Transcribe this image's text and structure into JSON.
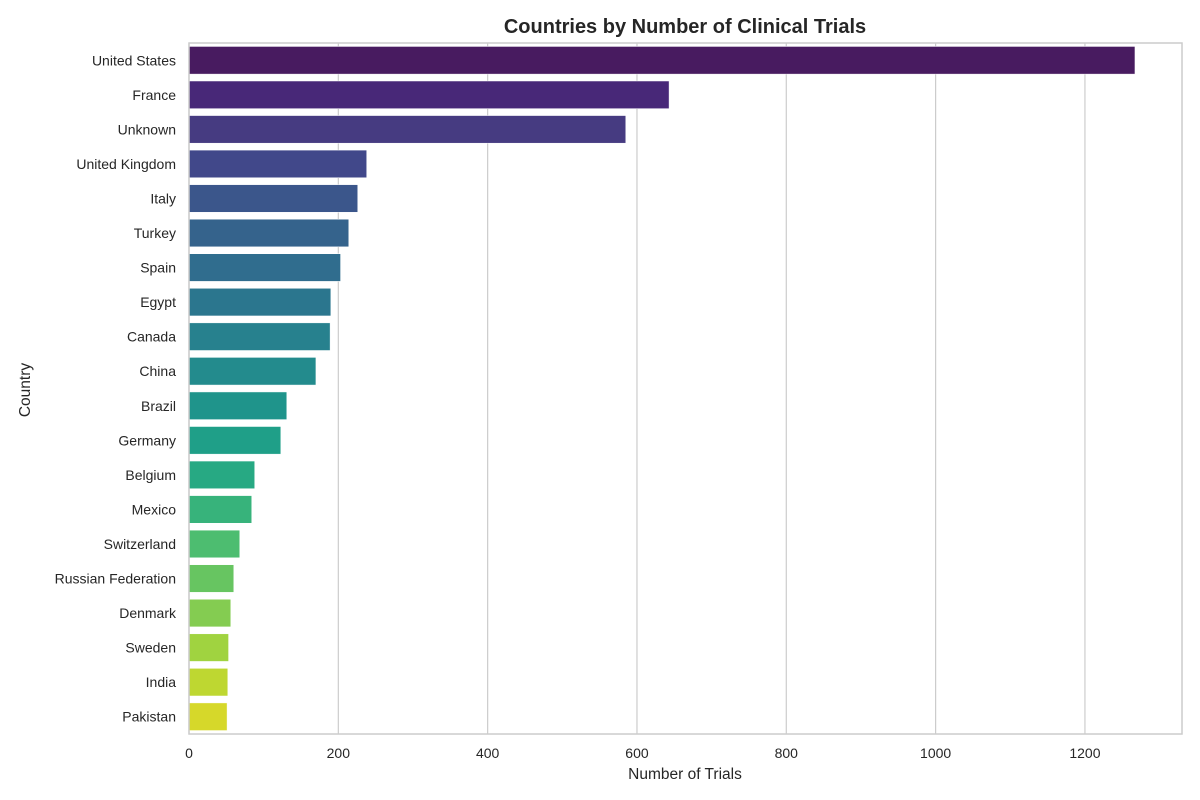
{
  "chart_data": {
    "type": "bar",
    "orientation": "horizontal",
    "title": "Countries by Number of Clinical Trials",
    "xlabel": "Number of Trials",
    "ylabel": "Country",
    "xlim": [
      0,
      1330
    ],
    "xticks": [
      0,
      200,
      400,
      600,
      800,
      1000,
      1200
    ],
    "grid": "vertical",
    "palette": "viridis",
    "categories": [
      "United States",
      "France",
      "Unknown",
      "United Kingdom",
      "Italy",
      "Turkey",
      "Spain",
      "Egypt",
      "Canada",
      "China",
      "Brazil",
      "Germany",
      "Belgium",
      "Mexico",
      "Switzerland",
      "Russian Federation",
      "Denmark",
      "Sweden",
      "India",
      "Pakistan"
    ],
    "values": [
      1267,
      643,
      585,
      238,
      226,
      214,
      203,
      190,
      189,
      170,
      131,
      123,
      88,
      84,
      68,
      60,
      56,
      53,
      52,
      51
    ],
    "colors": [
      "#481b60",
      "#482878",
      "#463b81",
      "#41488a",
      "#3b568b",
      "#35638c",
      "#306d8e",
      "#2b768e",
      "#27818e",
      "#238b8d",
      "#1f948b",
      "#1f9f88",
      "#27a983",
      "#37b37b",
      "#4dbd70",
      "#67c561",
      "#84cc51",
      "#a0d340",
      "#bed731",
      "#d6d82a"
    ]
  }
}
